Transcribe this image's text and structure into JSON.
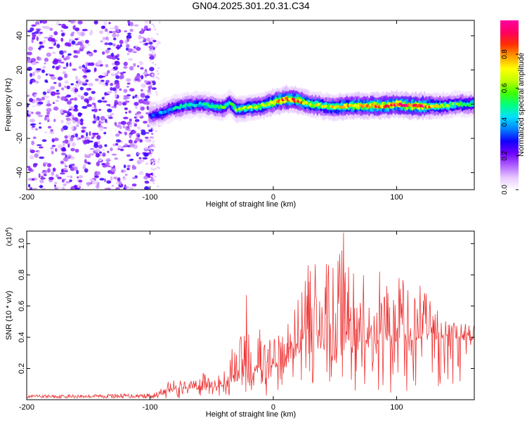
{
  "title": "GN04.2025.301.20.31.C34",
  "chart_data": [
    {
      "type": "heatmap",
      "title": "GN04.2025.301.20.31.C34",
      "xlabel": "Height of straight line (km)",
      "ylabel": "Frequency (Hz)",
      "xlim": [
        -200,
        163
      ],
      "ylim": [
        -50,
        49
      ],
      "xticks": [
        -200,
        -100,
        0,
        100
      ],
      "xtick_labels": [
        "-200",
        "-100",
        "0",
        "100"
      ],
      "yticks": [
        -40,
        -20,
        0,
        20,
        40
      ],
      "ytick_labels": [
        "-40",
        "-20",
        "0",
        "20",
        "40"
      ],
      "colorbar": {
        "label": "Normalized spectral amplitude",
        "range": [
          0,
          1
        ],
        "ticks": [
          0.0,
          0.2,
          0.4,
          0.6,
          0.8
        ],
        "tick_labels": [
          "0.0",
          "0.2",
          "0.4",
          "0.6",
          "0.8"
        ],
        "colors": [
          "#ffffff",
          "#e8c8ff",
          "#b060ff",
          "#7000ff",
          "#1000ff",
          "#0080ff",
          "#00e0ff",
          "#00ff80",
          "#40ff00",
          "#c0ff00",
          "#ffff00",
          "#ffa000",
          "#ff3000",
          "#ff0060",
          "#ff00a0"
        ]
      },
      "ridge": {
        "x": [
          -100,
          -90,
          -80,
          -70,
          -60,
          -50,
          -40,
          -35,
          -30,
          -20,
          -10,
          0,
          10,
          20,
          30,
          40,
          50,
          60,
          70,
          80,
          90,
          100,
          110,
          120,
          130,
          140,
          150,
          163
        ],
        "freq": [
          -7,
          -5,
          -2,
          -1,
          0,
          -1,
          -2,
          1,
          -3,
          -2,
          -1,
          1,
          3,
          2,
          0,
          -1,
          -2,
          -1,
          -1,
          -1,
          -1,
          0,
          -1,
          -1,
          -1,
          -1,
          0,
          0
        ],
        "amplitude": [
          0.3,
          0.4,
          0.45,
          0.5,
          0.45,
          0.5,
          0.55,
          0.5,
          0.6,
          0.6,
          0.65,
          0.75,
          0.85,
          0.8,
          0.7,
          0.65,
          0.7,
          0.75,
          0.8,
          0.85,
          0.85,
          0.9,
          0.9,
          0.95,
          0.7,
          0.6,
          0.55,
          0.5
        ]
      },
      "noise_region": [
        -200,
        -100
      ]
    },
    {
      "type": "line",
      "xlabel": "Height of straight line (km)",
      "ylabel": "SNR (10 * v/v)",
      "y_multiplier": "(x10",
      "y_multiplier_exp": "4",
      "y_multiplier_close": ")",
      "xlim": [
        -200,
        163
      ],
      "ylim": [
        0,
        1.08
      ],
      "xticks": [
        -200,
        -100,
        0,
        100
      ],
      "xtick_labels": [
        "-200",
        "-100",
        "0",
        "100"
      ],
      "yticks": [
        0.2,
        0.4,
        0.6,
        0.8,
        1.0
      ],
      "ytick_labels": [
        "0.2",
        "0.4",
        "0.6",
        "0.8",
        "1.0"
      ],
      "color": "#ee3333",
      "envelope": {
        "x": [
          -200,
          -100,
          -95,
          -85,
          -75,
          -65,
          -55,
          -45,
          -35,
          -25,
          -15,
          -5,
          5,
          15,
          25,
          35,
          45,
          55,
          60,
          65,
          75,
          85,
          95,
          105,
          115,
          125,
          135,
          145,
          155,
          163
        ],
        "base": [
          0.01,
          0.01,
          0.02,
          0.05,
          0.08,
          0.07,
          0.08,
          0.08,
          0.1,
          0.14,
          0.18,
          0.2,
          0.22,
          0.25,
          0.3,
          0.3,
          0.28,
          0.3,
          0.3,
          0.3,
          0.35,
          0.35,
          0.35,
          0.38,
          0.38,
          0.4,
          0.4,
          0.4,
          0.38,
          0.38
        ],
        "peak": [
          0.03,
          0.04,
          0.05,
          0.12,
          0.16,
          0.12,
          0.2,
          0.18,
          0.3,
          0.5,
          0.45,
          0.4,
          0.5,
          0.6,
          0.85,
          0.9,
          0.88,
          1.07,
          0.9,
          0.85,
          0.8,
          0.75,
          0.75,
          0.8,
          0.7,
          0.7,
          0.6,
          0.55,
          0.5,
          0.5
        ]
      },
      "highlights": [
        [
          -22,
          0.67
        ],
        [
          -11,
          0.45
        ],
        [
          28,
          0.86
        ],
        [
          43,
          0.87
        ],
        [
          57,
          1.07
        ],
        [
          61,
          0.85
        ],
        [
          86,
          0.82
        ],
        [
          119,
          0.73
        ],
        [
          133,
          0.57
        ]
      ]
    }
  ]
}
